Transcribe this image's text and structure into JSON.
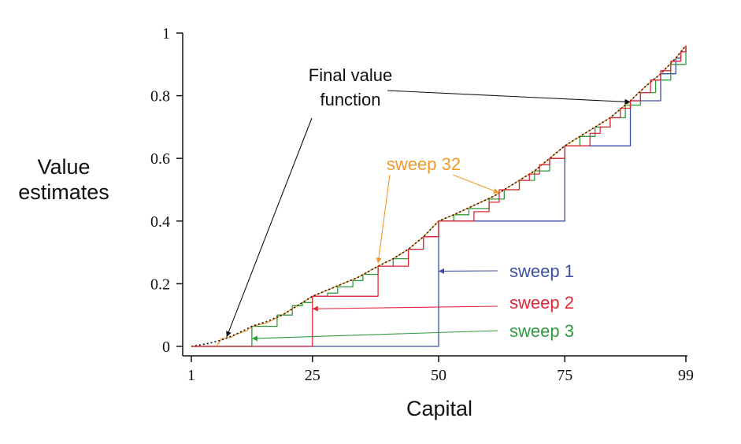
{
  "chart_data": {
    "type": "line",
    "title": "",
    "xlabel": "Capital",
    "ylabel_lines": [
      "Value",
      "estimates"
    ],
    "xlim": [
      1,
      99
    ],
    "ylim": [
      0,
      1
    ],
    "xticks": [
      1,
      25,
      50,
      75,
      99
    ],
    "xtick_labels": [
      "1",
      "25",
      "50",
      "75",
      "99"
    ],
    "yticks": [
      0,
      0.2,
      0.4,
      0.6,
      0.8,
      1
    ],
    "ytick_labels": [
      "0",
      "0.2",
      "0.4",
      "0.6",
      "0.8",
      "1"
    ],
    "grid": false,
    "colors": {
      "sweep1": "#3a4fa3",
      "sweep2": "#e0263a",
      "sweep3": "#2e9a3e",
      "sweep32": "#f39a2b",
      "final": "#111111",
      "axis": "#111111"
    },
    "series": [
      {
        "name": "sweep 1",
        "key": "sweep1",
        "step": true,
        "points": [
          [
            1,
            0
          ],
          [
            49,
            0
          ],
          [
            50,
            0.4
          ],
          [
            74,
            0.4
          ],
          [
            75,
            0.64
          ],
          [
            87,
            0.64
          ],
          [
            88,
            0.784
          ],
          [
            93,
            0.784
          ],
          [
            94,
            0.87
          ],
          [
            96,
            0.87
          ],
          [
            97,
            0.92
          ],
          [
            98,
            0.94
          ],
          [
            99,
            0.96
          ]
        ]
      },
      {
        "name": "sweep 2",
        "key": "sweep2",
        "step": true,
        "points": [
          [
            1,
            0
          ],
          [
            24,
            0
          ],
          [
            25,
            0.16
          ],
          [
            37,
            0.16
          ],
          [
            38,
            0.256
          ],
          [
            43,
            0.256
          ],
          [
            44,
            0.31
          ],
          [
            46,
            0.31
          ],
          [
            47,
            0.35
          ],
          [
            50,
            0.4
          ],
          [
            56,
            0.4
          ],
          [
            57,
            0.43
          ],
          [
            59,
            0.43
          ],
          [
            60,
            0.46
          ],
          [
            62,
            0.5
          ],
          [
            65,
            0.5
          ],
          [
            66,
            0.53
          ],
          [
            68,
            0.55
          ],
          [
            70,
            0.58
          ],
          [
            72,
            0.6
          ],
          [
            75,
            0.64
          ],
          [
            79,
            0.64
          ],
          [
            80,
            0.68
          ],
          [
            82,
            0.7
          ],
          [
            84,
            0.73
          ],
          [
            86,
            0.76
          ],
          [
            88,
            0.784
          ],
          [
            90,
            0.81
          ],
          [
            92,
            0.85
          ],
          [
            94,
            0.88
          ],
          [
            96,
            0.91
          ],
          [
            98,
            0.94
          ],
          [
            99,
            0.96
          ]
        ]
      },
      {
        "name": "sweep 3",
        "key": "sweep3",
        "step": true,
        "points": [
          [
            1,
            0
          ],
          [
            12,
            0
          ],
          [
            13,
            0.064
          ],
          [
            17,
            0.064
          ],
          [
            18,
            0.1
          ],
          [
            20,
            0.1
          ],
          [
            21,
            0.13
          ],
          [
            23,
            0.14
          ],
          [
            25,
            0.16
          ],
          [
            28,
            0.17
          ],
          [
            30,
            0.19
          ],
          [
            33,
            0.21
          ],
          [
            35,
            0.23
          ],
          [
            38,
            0.256
          ],
          [
            41,
            0.28
          ],
          [
            44,
            0.31
          ],
          [
            47,
            0.35
          ],
          [
            50,
            0.4
          ],
          [
            53,
            0.42
          ],
          [
            56,
            0.44
          ],
          [
            60,
            0.47
          ],
          [
            63,
            0.5
          ],
          [
            66,
            0.53
          ],
          [
            69,
            0.56
          ],
          [
            72,
            0.6
          ],
          [
            75,
            0.64
          ],
          [
            78,
            0.67
          ],
          [
            81,
            0.7
          ],
          [
            84,
            0.73
          ],
          [
            87,
            0.77
          ],
          [
            90,
            0.81
          ],
          [
            93,
            0.85
          ],
          [
            96,
            0.9
          ],
          [
            99,
            0.96
          ]
        ]
      },
      {
        "name": "sweep 32",
        "key": "sweep32",
        "step": false,
        "points": [
          [
            1,
            0
          ],
          [
            6,
            0
          ],
          [
            7,
            0.025
          ],
          [
            9,
            0.03
          ],
          [
            10,
            0.04
          ],
          [
            12,
            0.05
          ],
          [
            13,
            0.064
          ],
          [
            16,
            0.075
          ],
          [
            19,
            0.1
          ],
          [
            22,
            0.13
          ],
          [
            25,
            0.16
          ],
          [
            28,
            0.18
          ],
          [
            31,
            0.2
          ],
          [
            34,
            0.22
          ],
          [
            38,
            0.256
          ],
          [
            41,
            0.28
          ],
          [
            44,
            0.31
          ],
          [
            47,
            0.35
          ],
          [
            50,
            0.4
          ],
          [
            53,
            0.42
          ],
          [
            57,
            0.45
          ],
          [
            61,
            0.48
          ],
          [
            63,
            0.5
          ],
          [
            66,
            0.53
          ],
          [
            69,
            0.56
          ],
          [
            72,
            0.6
          ],
          [
            75,
            0.64
          ],
          [
            78,
            0.67
          ],
          [
            81,
            0.7
          ],
          [
            84,
            0.73
          ],
          [
            88,
            0.784
          ],
          [
            91,
            0.83
          ],
          [
            94,
            0.87
          ],
          [
            97,
            0.92
          ],
          [
            99,
            0.96
          ]
        ]
      },
      {
        "name": "Final value function",
        "key": "final",
        "step": false,
        "dashed": true,
        "points": [
          [
            1,
            0
          ],
          [
            4,
            0.008
          ],
          [
            7,
            0.02
          ],
          [
            10,
            0.04
          ],
          [
            13,
            0.064
          ],
          [
            16,
            0.08
          ],
          [
            19,
            0.1
          ],
          [
            22,
            0.13
          ],
          [
            25,
            0.16
          ],
          [
            28,
            0.18
          ],
          [
            31,
            0.2
          ],
          [
            34,
            0.22
          ],
          [
            38,
            0.256
          ],
          [
            41,
            0.28
          ],
          [
            44,
            0.31
          ],
          [
            47,
            0.35
          ],
          [
            50,
            0.4
          ],
          [
            53,
            0.42
          ],
          [
            57,
            0.45
          ],
          [
            61,
            0.48
          ],
          [
            63,
            0.5
          ],
          [
            66,
            0.53
          ],
          [
            69,
            0.56
          ],
          [
            72,
            0.6
          ],
          [
            75,
            0.64
          ],
          [
            78,
            0.67
          ],
          [
            81,
            0.7
          ],
          [
            84,
            0.73
          ],
          [
            88,
            0.784
          ],
          [
            91,
            0.83
          ],
          [
            94,
            0.87
          ],
          [
            97,
            0.92
          ],
          [
            99,
            0.96
          ]
        ]
      }
    ],
    "annotations": [
      {
        "key": "final",
        "lines": [
          "Final value",
          "function"
        ],
        "targets": [
          [
            88,
            0.78
          ],
          [
            8,
            0.03
          ]
        ]
      },
      {
        "key": "sweep32",
        "lines": [
          "sweep 32"
        ],
        "targets": [
          [
            38,
            0.265
          ],
          [
            62,
            0.49
          ]
        ]
      },
      {
        "key": "sweep1",
        "lines": [
          "sweep 1"
        ],
        "targets": [
          [
            50,
            0.24
          ]
        ]
      },
      {
        "key": "sweep2",
        "lines": [
          "sweep 2"
        ],
        "targets": [
          [
            25,
            0.12
          ]
        ]
      },
      {
        "key": "sweep3",
        "lines": [
          "sweep 3"
        ],
        "targets": [
          [
            13,
            0.025
          ]
        ]
      }
    ]
  }
}
